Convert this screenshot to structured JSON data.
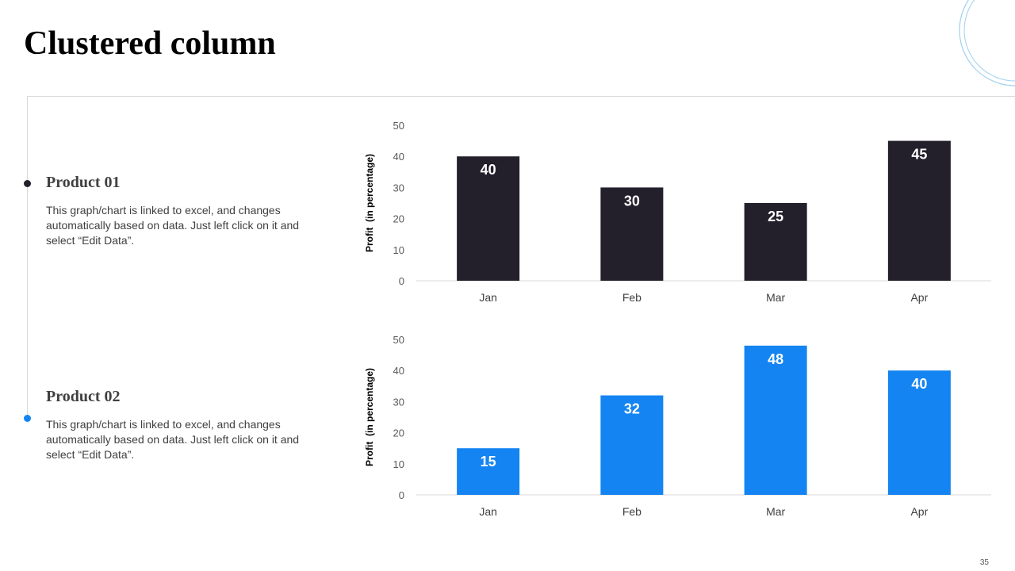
{
  "slide": {
    "title": "Clustered column",
    "page_number": "35"
  },
  "colors": {
    "product1": "#231f2b",
    "product2": "#1484f2",
    "deco": "#9fd0ee"
  },
  "products": [
    {
      "title": "Product 01",
      "description": "This graph/chart is linked to excel, and changes automatically based on data. Just left click on it and select “Edit Data”."
    },
    {
      "title": "Product 02",
      "description": "This graph/chart is linked to excel, and changes automatically based on data. Just left click on it and select “Edit Data”."
    }
  ],
  "chart_data": [
    {
      "type": "bar",
      "categories": [
        "Jan",
        "Feb",
        "Mar",
        "Apr"
      ],
      "series": [
        {
          "values": [
            40,
            30,
            25,
            45
          ]
        }
      ],
      "title": "",
      "xlabel": "",
      "ylabel": "Profit  (in percentage)",
      "ylim": [
        0,
        50
      ],
      "yticks": [
        0,
        10,
        20,
        30,
        40,
        50
      ],
      "data_labels": true,
      "grid": false,
      "color": "#231f2b"
    },
    {
      "type": "bar",
      "categories": [
        "Jan",
        "Feb",
        "Mar",
        "Apr"
      ],
      "series": [
        {
          "values": [
            15,
            32,
            48,
            40
          ]
        }
      ],
      "title": "",
      "xlabel": "",
      "ylabel": "Profit  (in percentage)",
      "ylim": [
        0,
        50
      ],
      "yticks": [
        0,
        10,
        20,
        30,
        40,
        50
      ],
      "data_labels": true,
      "grid": false,
      "color": "#1484f2"
    }
  ]
}
